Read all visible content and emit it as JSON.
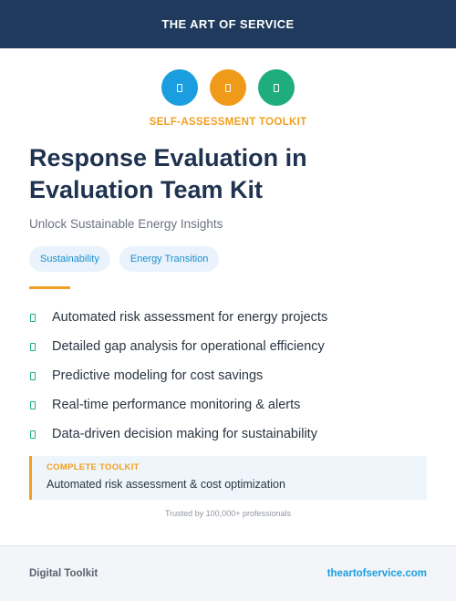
{
  "header": {
    "brand": "THE ART OF SERVICE"
  },
  "icons": [
    {
      "name": "document-icon",
      "color": "#1a9ee0"
    },
    {
      "name": "document-icon",
      "color": "#f09a1a"
    },
    {
      "name": "document-icon",
      "color": "#1fad7d"
    }
  ],
  "kicker": "SELF-ASSESSMENT TOOLKIT",
  "title_line1": "Response Evaluation in",
  "title_line2": "Evaluation Team Kit",
  "subtitle": "Unlock Sustainable Energy Insights",
  "tags": [
    "Sustainability",
    "Energy Transition"
  ],
  "features": [
    "Automated risk assessment for energy projects",
    "Detailed gap analysis for operational efficiency",
    "Predictive modeling for cost savings",
    "Real-time performance monitoring & alerts",
    "Data-driven decision making for sustainability"
  ],
  "callout": {
    "label": "COMPLETE TOOLKIT",
    "text": "Automated risk assessment & cost optimization"
  },
  "trusted": "Trusted by 100,000+ professionals",
  "footer": {
    "left": "Digital Toolkit",
    "right": "theartofservice.com"
  },
  "colors": {
    "navy": "#1f3a5c",
    "accent_orange": "#f0a020",
    "accent_blue": "#1a9ee0",
    "accent_green": "#1fad7d"
  }
}
